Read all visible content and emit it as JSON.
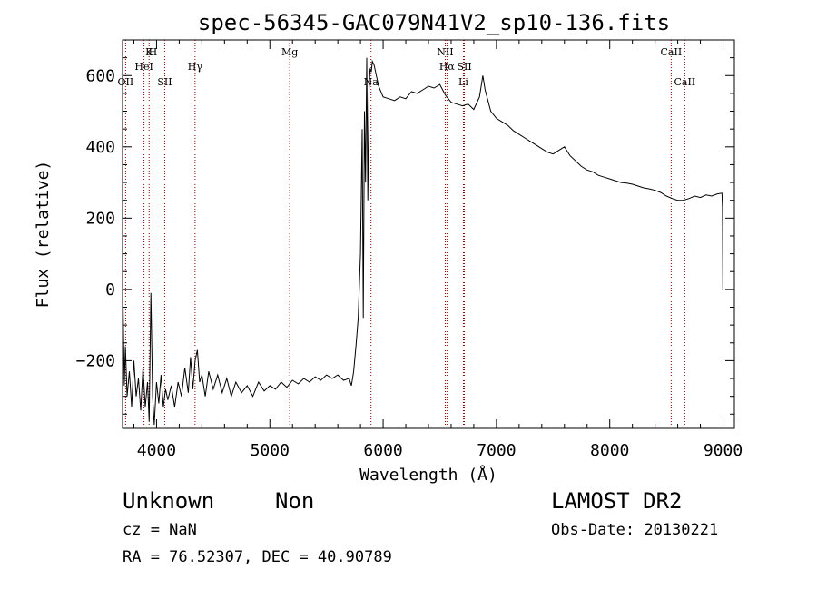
{
  "chart_data": {
    "type": "line",
    "title": "spec-56345-GAC079N41V2_sp10-136.fits",
    "xlabel": "Wavelength (Å)",
    "ylabel": "Flux (relative)",
    "xlim": [
      3700,
      9100
    ],
    "ylim": [
      -390,
      700
    ],
    "xticks": [
      4000,
      5000,
      6000,
      7000,
      8000,
      9000
    ],
    "yticks": [
      -200,
      0,
      200,
      400,
      600
    ],
    "line_color": "#000000",
    "marker_color": "#8b0000",
    "series": [
      {
        "points": [
          [
            3705,
            -50
          ],
          [
            3715,
            -270
          ],
          [
            3725,
            -160
          ],
          [
            3740,
            -300
          ],
          [
            3760,
            -230
          ],
          [
            3780,
            -330
          ],
          [
            3800,
            -200
          ],
          [
            3820,
            -300
          ],
          [
            3840,
            -250
          ],
          [
            3860,
            -340
          ],
          [
            3880,
            -220
          ],
          [
            3900,
            -330
          ],
          [
            3920,
            -260
          ],
          [
            3935,
            -370
          ],
          [
            3950,
            -10
          ],
          [
            3965,
            -300
          ],
          [
            3980,
            -380
          ],
          [
            4000,
            -260
          ],
          [
            4020,
            -320
          ],
          [
            4040,
            -240
          ],
          [
            4060,
            -330
          ],
          [
            4080,
            -280
          ],
          [
            4100,
            -310
          ],
          [
            4130,
            -270
          ],
          [
            4160,
            -330
          ],
          [
            4190,
            -260
          ],
          [
            4220,
            -300
          ],
          [
            4250,
            -220
          ],
          [
            4280,
            -290
          ],
          [
            4300,
            -190
          ],
          [
            4320,
            -280
          ],
          [
            4340,
            -200
          ],
          [
            4360,
            -170
          ],
          [
            4380,
            -260
          ],
          [
            4400,
            -240
          ],
          [
            4430,
            -300
          ],
          [
            4460,
            -230
          ],
          [
            4500,
            -280
          ],
          [
            4540,
            -240
          ],
          [
            4580,
            -290
          ],
          [
            4620,
            -250
          ],
          [
            4660,
            -300
          ],
          [
            4700,
            -260
          ],
          [
            4750,
            -290
          ],
          [
            4800,
            -270
          ],
          [
            4850,
            -300
          ],
          [
            4900,
            -260
          ],
          [
            4950,
            -285
          ],
          [
            5000,
            -270
          ],
          [
            5050,
            -280
          ],
          [
            5100,
            -260
          ],
          [
            5150,
            -275
          ],
          [
            5200,
            -255
          ],
          [
            5250,
            -265
          ],
          [
            5300,
            -250
          ],
          [
            5350,
            -260
          ],
          [
            5400,
            -245
          ],
          [
            5450,
            -255
          ],
          [
            5500,
            -240
          ],
          [
            5550,
            -250
          ],
          [
            5600,
            -240
          ],
          [
            5650,
            -255
          ],
          [
            5700,
            -250
          ],
          [
            5720,
            -270
          ],
          [
            5740,
            -230
          ],
          [
            5760,
            -160
          ],
          [
            5780,
            -80
          ],
          [
            5800,
            100
          ],
          [
            5815,
            450
          ],
          [
            5825,
            -80
          ],
          [
            5835,
            500
          ],
          [
            5845,
            300
          ],
          [
            5855,
            650
          ],
          [
            5865,
            250
          ],
          [
            5875,
            560
          ],
          [
            5885,
            620
          ],
          [
            5895,
            610
          ],
          [
            5905,
            640
          ],
          [
            5920,
            630
          ],
          [
            5940,
            600
          ],
          [
            5960,
            570
          ],
          [
            5980,
            555
          ],
          [
            6000,
            540
          ],
          [
            6050,
            535
          ],
          [
            6100,
            530
          ],
          [
            6150,
            540
          ],
          [
            6200,
            535
          ],
          [
            6250,
            555
          ],
          [
            6300,
            550
          ],
          [
            6350,
            560
          ],
          [
            6400,
            570
          ],
          [
            6450,
            565
          ],
          [
            6500,
            575
          ],
          [
            6550,
            545
          ],
          [
            6600,
            525
          ],
          [
            6650,
            520
          ],
          [
            6700,
            515
          ],
          [
            6750,
            520
          ],
          [
            6800,
            505
          ],
          [
            6850,
            540
          ],
          [
            6880,
            600
          ],
          [
            6900,
            560
          ],
          [
            6950,
            500
          ],
          [
            7000,
            480
          ],
          [
            7050,
            470
          ],
          [
            7100,
            460
          ],
          [
            7150,
            445
          ],
          [
            7200,
            435
          ],
          [
            7250,
            425
          ],
          [
            7300,
            415
          ],
          [
            7350,
            405
          ],
          [
            7400,
            395
          ],
          [
            7450,
            385
          ],
          [
            7500,
            380
          ],
          [
            7550,
            390
          ],
          [
            7600,
            400
          ],
          [
            7650,
            375
          ],
          [
            7700,
            360
          ],
          [
            7750,
            345
          ],
          [
            7800,
            335
          ],
          [
            7850,
            330
          ],
          [
            7900,
            320
          ],
          [
            7950,
            315
          ],
          [
            8000,
            310
          ],
          [
            8050,
            305
          ],
          [
            8100,
            300
          ],
          [
            8150,
            298
          ],
          [
            8200,
            295
          ],
          [
            8250,
            290
          ],
          [
            8300,
            285
          ],
          [
            8350,
            282
          ],
          [
            8400,
            278
          ],
          [
            8450,
            272
          ],
          [
            8500,
            262
          ],
          [
            8550,
            255
          ],
          [
            8600,
            250
          ],
          [
            8650,
            250
          ],
          [
            8700,
            255
          ],
          [
            8750,
            262
          ],
          [
            8800,
            258
          ],
          [
            8850,
            265
          ],
          [
            8900,
            262
          ],
          [
            8950,
            268
          ],
          [
            8990,
            270
          ],
          [
            8995,
            230
          ],
          [
            8998,
            0
          ]
        ]
      }
    ],
    "annotations": [
      {
        "label": "OII",
        "x": 3727,
        "row": 3
      },
      {
        "label": "HeI",
        "x": 3889,
        "row": 2
      },
      {
        "label": "K",
        "x": 3934,
        "row": 1
      },
      {
        "label": "H",
        "x": 3968,
        "row": 1
      },
      {
        "label": "SII",
        "x": 4072,
        "row": 3
      },
      {
        "label": "Hγ",
        "x": 4340,
        "row": 2
      },
      {
        "label": "Mg",
        "x": 5175,
        "row": 1
      },
      {
        "label": "Na",
        "x": 5893,
        "row": 3
      },
      {
        "label": "NII",
        "x": 6548,
        "row": 1
      },
      {
        "label": "Hα",
        "x": 6563,
        "row": 2
      },
      {
        "label": "SII",
        "x": 6717,
        "row": 2
      },
      {
        "label": "Li",
        "x": 6708,
        "row": 3
      },
      {
        "label": "CaII",
        "x": 8542,
        "row": 1
      },
      {
        "label": "CaII",
        "x": 8662,
        "row": 3
      }
    ]
  },
  "footer": {
    "object_class": "Unknown",
    "subclass": "Non",
    "survey": "LAMOST DR2",
    "redshift_text": "cz = NaN",
    "obs_date": "Obs-Date: 20130221",
    "coordinates": "RA =  76.52307, DEC =  40.90789"
  }
}
